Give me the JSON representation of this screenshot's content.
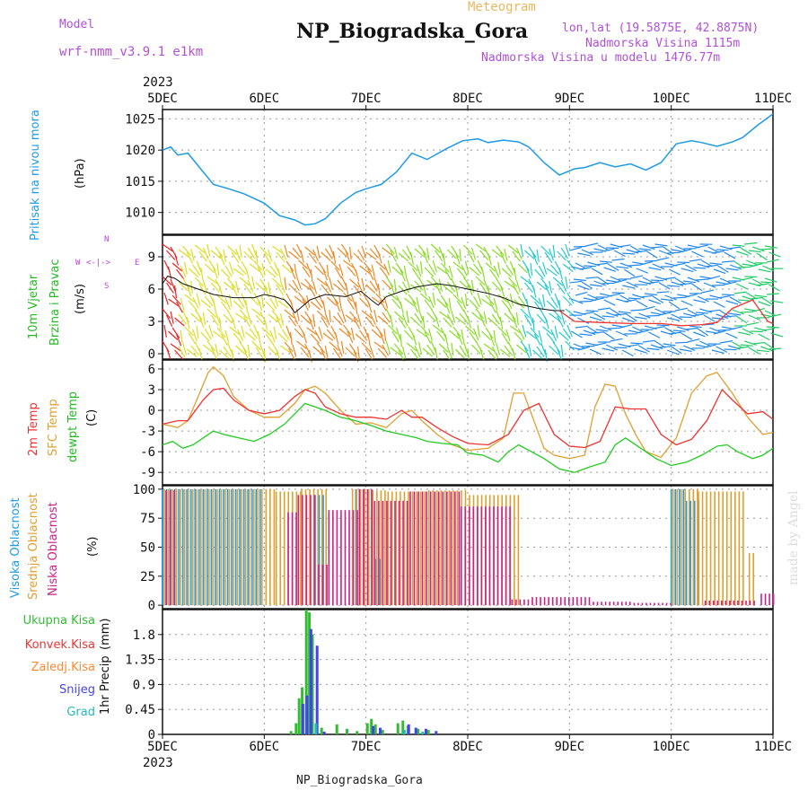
{
  "header": {
    "model_label": "Model",
    "model_name": "wrf-nmm_v3.9.1 e1km",
    "meteogram_label": "Meteogram",
    "station": "NP_Biogradska_Gora",
    "coords": "lon,lat (19.5875E, 42.8875N)",
    "altitude": "Nadmorska Visina 1115m",
    "model_altitude": "Nadmorska Visina u modelu 1476.77m"
  },
  "footer_station": "NP_Biogradska_Gora",
  "signature": "made by Angel",
  "colors": {
    "pressure": "#1e9be6",
    "wind_label": "#22bb22",
    "temp2m": "#ee3333",
    "sfc": "#e0a030",
    "dew": "#22cc22",
    "high": "#1e9be6",
    "mid": "#e0a030",
    "low": "#cc2288",
    "total": "#33bb33",
    "conv": "#ee3333",
    "frz": "#ff8833",
    "snow": "#4444ee",
    "graupel": "#22bbbb",
    "grid": "#999999",
    "compass": "#c040e0"
  },
  "chart_data": [
    {
      "type": "line",
      "panel": "pressure",
      "ylabel": [
        "Pritisak na nivou mora",
        "(hPa)"
      ],
      "ylim": [
        1006.5,
        1026.5
      ],
      "yticks": [
        "1010",
        "1015",
        "1020",
        "1025"
      ],
      "ytick_values": [
        1010,
        1015,
        1020,
        1025
      ],
      "x_top_labels": [
        "2023",
        "5DEC",
        "6DEC",
        "7DEC",
        "8DEC",
        "9DEC",
        "10DEC",
        "11DEC"
      ],
      "x_days": [
        0,
        1,
        2,
        3,
        4,
        5,
        6
      ],
      "series": [
        {
          "name": "",
          "x": [
            0,
            0.08,
            0.15,
            0.25,
            0.35,
            0.5,
            0.65,
            0.8,
            1.0,
            1.15,
            1.3,
            1.4,
            1.5,
            1.6,
            1.75,
            1.9,
            2.0,
            2.15,
            2.3,
            2.45,
            2.6,
            2.8,
            2.95,
            3.1,
            3.2,
            3.35,
            3.5,
            3.6,
            3.75,
            3.9,
            4.05,
            4.15,
            4.3,
            4.45,
            4.6,
            4.75,
            4.9,
            5.05,
            5.2,
            5.3,
            5.45,
            5.6,
            5.7,
            5.85,
            6.0
          ],
          "y": [
            1020,
            1020.5,
            1019.2,
            1019.5,
            1017.5,
            1014.5,
            1013.8,
            1013,
            1011.5,
            1009.5,
            1008.8,
            1008,
            1008.2,
            1009,
            1011.5,
            1013.2,
            1013.8,
            1014.5,
            1016.5,
            1019.5,
            1018.5,
            1020.3,
            1021.5,
            1021.8,
            1021.2,
            1021.6,
            1021.3,
            1020.5,
            1018,
            1016,
            1017,
            1017.2,
            1018,
            1017.3,
            1017.8,
            1016.8,
            1018,
            1021,
            1021.5,
            1021.2,
            1020.6,
            1021.3,
            1022,
            1024,
            1025.8
          ]
        }
      ]
    },
    {
      "type": "line",
      "panel": "wind",
      "ylabel": [
        "10m Vjetar",
        "Brzina i Pravac",
        "(m/s)"
      ],
      "compass": [
        "W",
        "<-|->",
        "E",
        "N",
        "S"
      ],
      "ylim": [
        -0.5,
        11
      ],
      "yticks": [
        "0",
        "3",
        "6",
        "9"
      ],
      "ytick_values": [
        0,
        3,
        6,
        9
      ],
      "series": [
        {
          "name": "",
          "x": [
            0,
            0.05,
            0.12,
            0.2,
            0.35,
            0.5,
            0.7,
            0.9,
            1.0,
            1.1,
            1.2,
            1.25,
            1.3,
            1.35,
            1.45,
            1.6,
            1.8,
            1.95,
            2.05,
            2.12,
            2.2,
            2.35,
            2.5,
            2.7,
            2.85,
            3.0,
            3.1,
            3.2,
            3.35,
            3.5,
            3.7,
            3.85,
            3.95
          ],
          "y": [
            6.5,
            7.2,
            7,
            6.5,
            6,
            5.5,
            5.2,
            5.2,
            5.5,
            5.3,
            5,
            4.5,
            3.8,
            4.2,
            5,
            5.5,
            5.3,
            5.8,
            5,
            4.5,
            5.3,
            5.8,
            6.2,
            6.5,
            6.3,
            6,
            5.8,
            5.6,
            5.2,
            4.6,
            4.2,
            4,
            4
          ]
        },
        {
          "name": "",
          "x": [
            3.9,
            4.05,
            4.3,
            4.6,
            4.9,
            5.1,
            5.3,
            5.45,
            5.6,
            5.8,
            5.95,
            6.0
          ],
          "y": [
            4.0,
            3.0,
            2.9,
            2.8,
            2.8,
            2.6,
            2.7,
            2.9,
            4.2,
            5.0,
            3.0,
            2.8
          ]
        }
      ]
    },
    {
      "type": "line",
      "panel": "temperature",
      "ylabel": [
        "2m Temp",
        "SFC Temp",
        "dewpt Temp",
        "(C)"
      ],
      "ylim": [
        -10.8,
        7.3
      ],
      "yticks": [
        "6",
        "3",
        "0",
        "-3",
        "-6",
        "-9"
      ],
      "ytick_values": [
        6,
        3,
        0,
        -3,
        -6,
        -9
      ],
      "series": [
        {
          "name": "2m Temp",
          "x": [
            0,
            0.15,
            0.25,
            0.4,
            0.5,
            0.6,
            0.7,
            0.85,
            1.0,
            1.15,
            1.3,
            1.4,
            1.5,
            1.6,
            1.75,
            1.9,
            2.05,
            2.2,
            2.35,
            2.45,
            2.55,
            2.7,
            2.85,
            3.0,
            3.2,
            3.4,
            3.55,
            3.7,
            3.85,
            4.0,
            4.15,
            4.3,
            4.45,
            4.6,
            4.75,
            4.9,
            5.05,
            5.2,
            5.35,
            5.5,
            5.6,
            5.75,
            5.9,
            6.0
          ],
          "y": [
            -2,
            -1.5,
            -1.5,
            1.5,
            3,
            3.2,
            1.5,
            0,
            -0.5,
            0,
            2,
            3,
            2.5,
            0.5,
            -0.5,
            -1,
            -1,
            -1.3,
            0,
            -1,
            -1,
            -2.5,
            -3.8,
            -4.8,
            -5,
            -3.5,
            0,
            1,
            -3.5,
            -5.2,
            -5.4,
            -4.5,
            0.5,
            0.2,
            0.2,
            -3.5,
            -5,
            -4.2,
            -1.5,
            3,
            1.5,
            -0.5,
            -0.2,
            -1.3
          ]
        },
        {
          "name": "SFC Temp",
          "x": [
            0,
            0.15,
            0.25,
            0.35,
            0.45,
            0.5,
            0.6,
            0.7,
            0.85,
            1.0,
            1.15,
            1.3,
            1.4,
            1.5,
            1.6,
            1.75,
            1.9,
            2.05,
            2.2,
            2.35,
            2.45,
            2.55,
            2.7,
            2.85,
            3.0,
            3.2,
            3.35,
            3.45,
            3.55,
            3.65,
            3.75,
            3.85,
            4.0,
            4.15,
            4.25,
            4.35,
            4.45,
            4.55,
            4.65,
            4.75,
            4.9,
            5.05,
            5.2,
            5.35,
            5.45,
            5.5,
            5.6,
            5.75,
            5.9,
            6.0
          ],
          "y": [
            -2,
            -2.5,
            -1.5,
            2,
            5.5,
            6.3,
            5,
            2,
            0,
            -1,
            -1,
            1,
            3,
            3.5,
            2.5,
            0,
            -2,
            -1.8,
            -2.5,
            -0.5,
            0,
            -1.5,
            -3.5,
            -5,
            -5.8,
            -5.5,
            -4,
            2.5,
            2.5,
            -1.5,
            -5.5,
            -6.5,
            -7,
            -6.5,
            0.5,
            3.8,
            3.5,
            -0.5,
            -3.5,
            -6,
            -6.8,
            -4,
            2.5,
            5,
            5.5,
            4.5,
            2.5,
            -1,
            -3.5,
            -3.2
          ]
        },
        {
          "name": "dewpt Temp",
          "x": [
            0,
            0.1,
            0.2,
            0.3,
            0.4,
            0.5,
            0.6,
            0.75,
            0.9,
            1.05,
            1.2,
            1.3,
            1.4,
            1.5,
            1.6,
            1.75,
            1.9,
            2.05,
            2.2,
            2.35,
            2.5,
            2.6,
            2.75,
            2.9,
            3.0,
            3.15,
            3.3,
            3.4,
            3.5,
            3.6,
            3.75,
            3.9,
            4.05,
            4.2,
            4.35,
            4.45,
            4.55,
            4.7,
            4.85,
            5.0,
            5.15,
            5.3,
            5.45,
            5.55,
            5.65,
            5.8,
            5.9,
            6.0
          ],
          "y": [
            -5,
            -4.5,
            -5.5,
            -5,
            -4,
            -3,
            -3.5,
            -4,
            -4.5,
            -3.5,
            -2,
            -0.5,
            1,
            0.5,
            0,
            -1,
            -1.5,
            -2.2,
            -3,
            -3.5,
            -4,
            -4.5,
            -4.8,
            -5,
            -6.2,
            -6.5,
            -7.5,
            -6,
            -5,
            -5.8,
            -7,
            -8.5,
            -9,
            -8.2,
            -7.5,
            -5,
            -4,
            -5.5,
            -7,
            -8,
            -7.5,
            -6.5,
            -5.2,
            -5,
            -6,
            -7,
            -6.5,
            -5.5
          ]
        }
      ]
    },
    {
      "type": "bar",
      "panel": "clouds",
      "ylabel": [
        "Visoka Oblacnost",
        "Srednja Oblacnost",
        "Niska Oblacnost",
        "(%)"
      ],
      "ylim": [
        -3,
        103
      ],
      "yticks": [
        "100",
        "75",
        "50",
        "25",
        "0"
      ],
      "ytick_values": [
        100,
        75,
        50,
        25,
        0
      ],
      "series": [
        {
          "name": "Visoka Oblacnost",
          "segments": [
            [
              0.0,
              1.0,
              100
            ],
            [
              1.0,
              1.5,
              0
            ],
            [
              1.5,
              1.6,
              95
            ],
            [
              1.9,
              2.05,
              100
            ],
            [
              2.1,
              2.15,
              40
            ],
            [
              2.15,
              4.0,
              0
            ],
            [
              5.0,
              5.15,
              100
            ],
            [
              5.15,
              5.3,
              90
            ],
            [
              5.3,
              6.0,
              0
            ]
          ]
        },
        {
          "name": "Srednja Oblacnost",
          "segments": [
            [
              0.0,
              1.1,
              100
            ],
            [
              1.1,
              1.35,
              98
            ],
            [
              1.35,
              1.6,
              100
            ],
            [
              1.85,
              2.05,
              100
            ],
            [
              2.05,
              2.2,
              99
            ],
            [
              2.2,
              2.6,
              98
            ],
            [
              2.6,
              3.0,
              99
            ],
            [
              3.0,
              3.5,
              95
            ],
            [
              5.0,
              5.25,
              100
            ],
            [
              5.25,
              5.7,
              98
            ],
            [
              5.75,
              5.8,
              45
            ]
          ]
        },
        {
          "name": "Niska Oblacnost",
          "segments": [
            [
              0.0,
              0.1,
              99
            ],
            [
              1.2,
              1.3,
              80
            ],
            [
              1.3,
              1.5,
              95
            ],
            [
              1.5,
              1.6,
              35
            ],
            [
              1.6,
              1.9,
              82
            ],
            [
              1.9,
              2.05,
              100
            ],
            [
              2.05,
              2.4,
              90
            ],
            [
              2.4,
              2.9,
              98
            ],
            [
              2.9,
              3.4,
              85
            ],
            [
              3.4,
              3.6,
              5
            ],
            [
              3.6,
              4.2,
              7
            ],
            [
              4.2,
              4.6,
              3
            ],
            [
              4.6,
              5.0,
              2
            ],
            [
              5.3,
              5.8,
              4
            ],
            [
              5.85,
              6.0,
              10
            ]
          ]
        }
      ]
    },
    {
      "type": "bar",
      "panel": "precip",
      "ylabel": [
        "1hr Precip",
        "(mm)"
      ],
      "legend": [
        "Ukupna Kisa",
        "Konvek.Kisa",
        "Zaledj.Kisa",
        "Snijeg",
        "Grad"
      ],
      "ylim": [
        0,
        2.25
      ],
      "yticks": [
        "1.8",
        "1.35",
        "0.9",
        "0.45",
        "0"
      ],
      "ytick_values": [
        1.8,
        1.35,
        0.9,
        0.45,
        0
      ],
      "x_bottom_labels": [
        "5DEC",
        "6DEC",
        "7DEC",
        "8DEC",
        "9DEC",
        "10DEC",
        "11DEC",
        "2023"
      ],
      "x_days": [
        0,
        1,
        2,
        3,
        4,
        5,
        6
      ],
      "series": [
        {
          "name": "Ukupna Kisa",
          "x": [
            1.25,
            1.3,
            1.33,
            1.36,
            1.4,
            1.43,
            1.46,
            1.55,
            1.7,
            1.8,
            1.9,
            2.0,
            2.04,
            2.08,
            2.15,
            2.3,
            2.35,
            2.4,
            2.5,
            2.6
          ],
          "y": [
            0.06,
            0.2,
            0.65,
            0.85,
            2.25,
            2.2,
            1.8,
            0.12,
            0.18,
            0.1,
            0.06,
            0.2,
            0.28,
            0.18,
            0.08,
            0.2,
            0.25,
            0.15,
            0.1,
            0.08
          ]
        },
        {
          "name": "Snijeg",
          "x": [
            1.34,
            1.38,
            1.42,
            1.48,
            1.55,
            2.03,
            2.1,
            2.38,
            2.45,
            2.55,
            2.65
          ],
          "y": [
            0.55,
            0.7,
            1.9,
            1.6,
            0.05,
            0.15,
            0.12,
            0.18,
            0.12,
            0.1,
            0.06
          ]
        },
        {
          "name": "Grad",
          "x": [
            1.45,
            2.32,
            2.5
          ],
          "y": [
            0.2,
            0.08,
            0.05
          ]
        }
      ]
    }
  ]
}
